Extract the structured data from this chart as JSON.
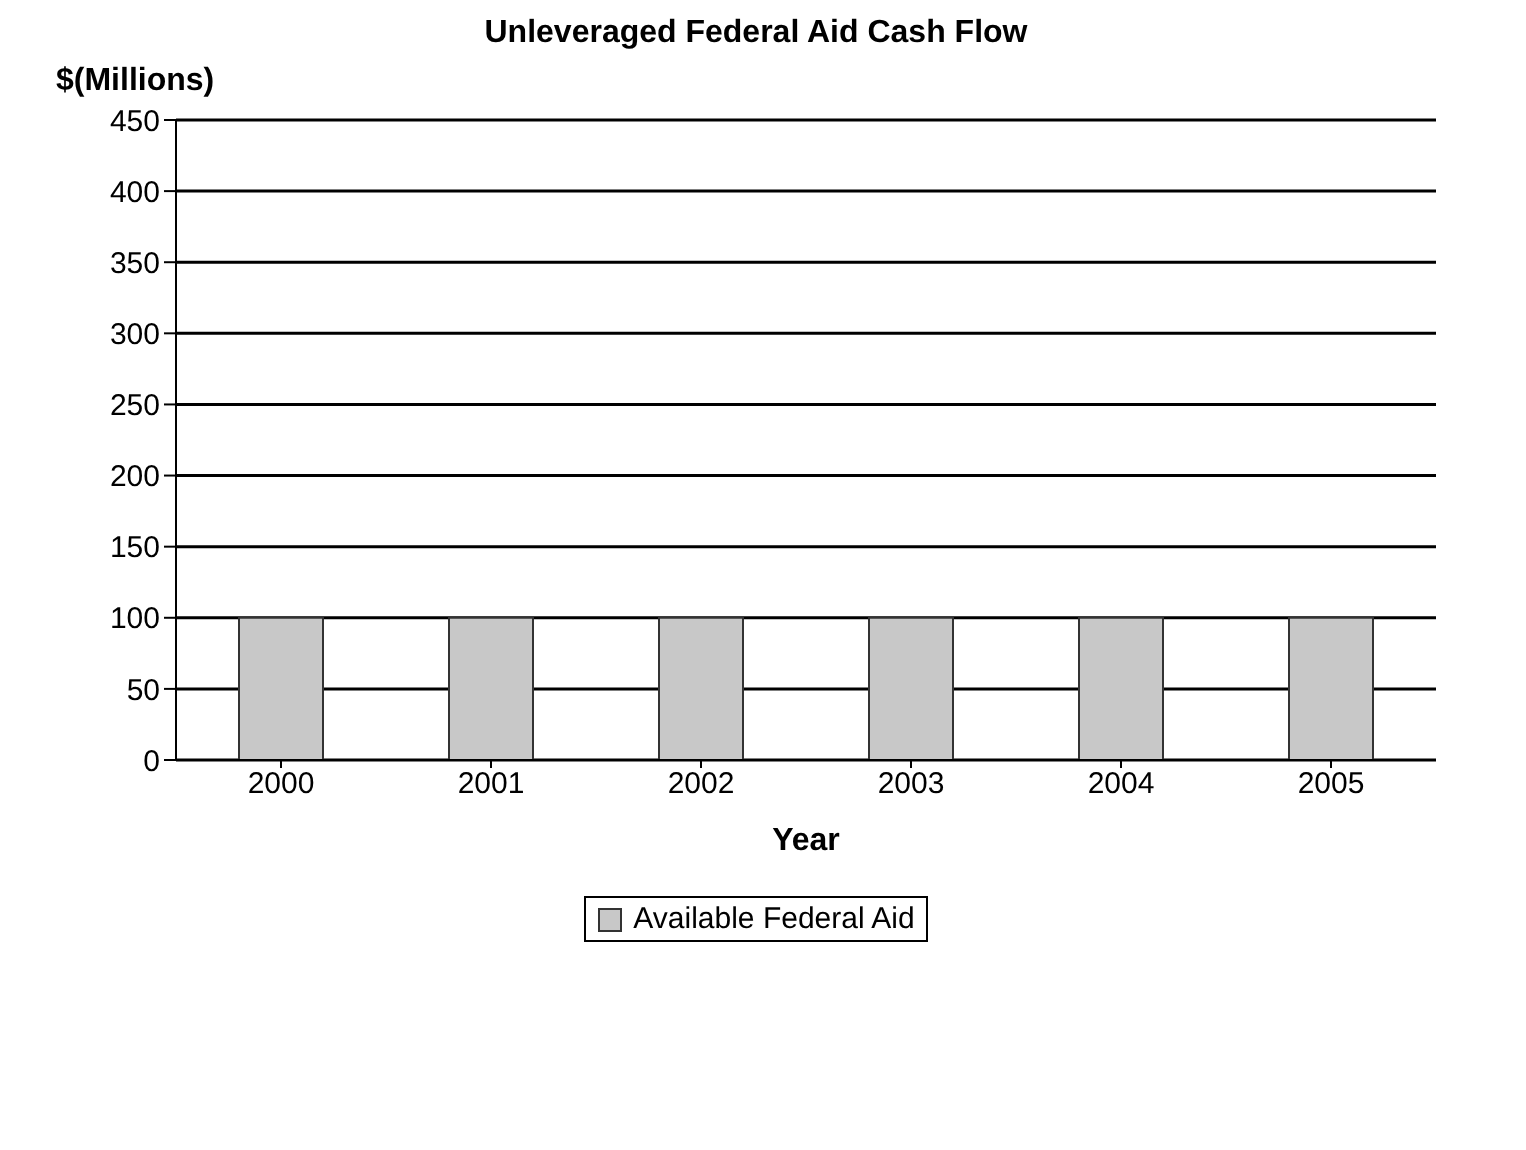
{
  "chart_data": {
    "type": "bar",
    "title": "Unleveraged Federal Aid Cash Flow",
    "ylabel": "$(Millions)",
    "xlabel": "Year",
    "categories": [
      "2000",
      "2001",
      "2002",
      "2003",
      "2004",
      "2005"
    ],
    "series": [
      {
        "name": "Available Federal Aid",
        "color": "#c8c8c8",
        "values": [
          100,
          100,
          100,
          100,
          100,
          100
        ]
      }
    ],
    "ylim": [
      0,
      450
    ],
    "yticks": [
      0,
      50,
      100,
      150,
      200,
      250,
      300,
      350,
      400,
      450
    ],
    "grid": "y",
    "legend": "bottom"
  }
}
